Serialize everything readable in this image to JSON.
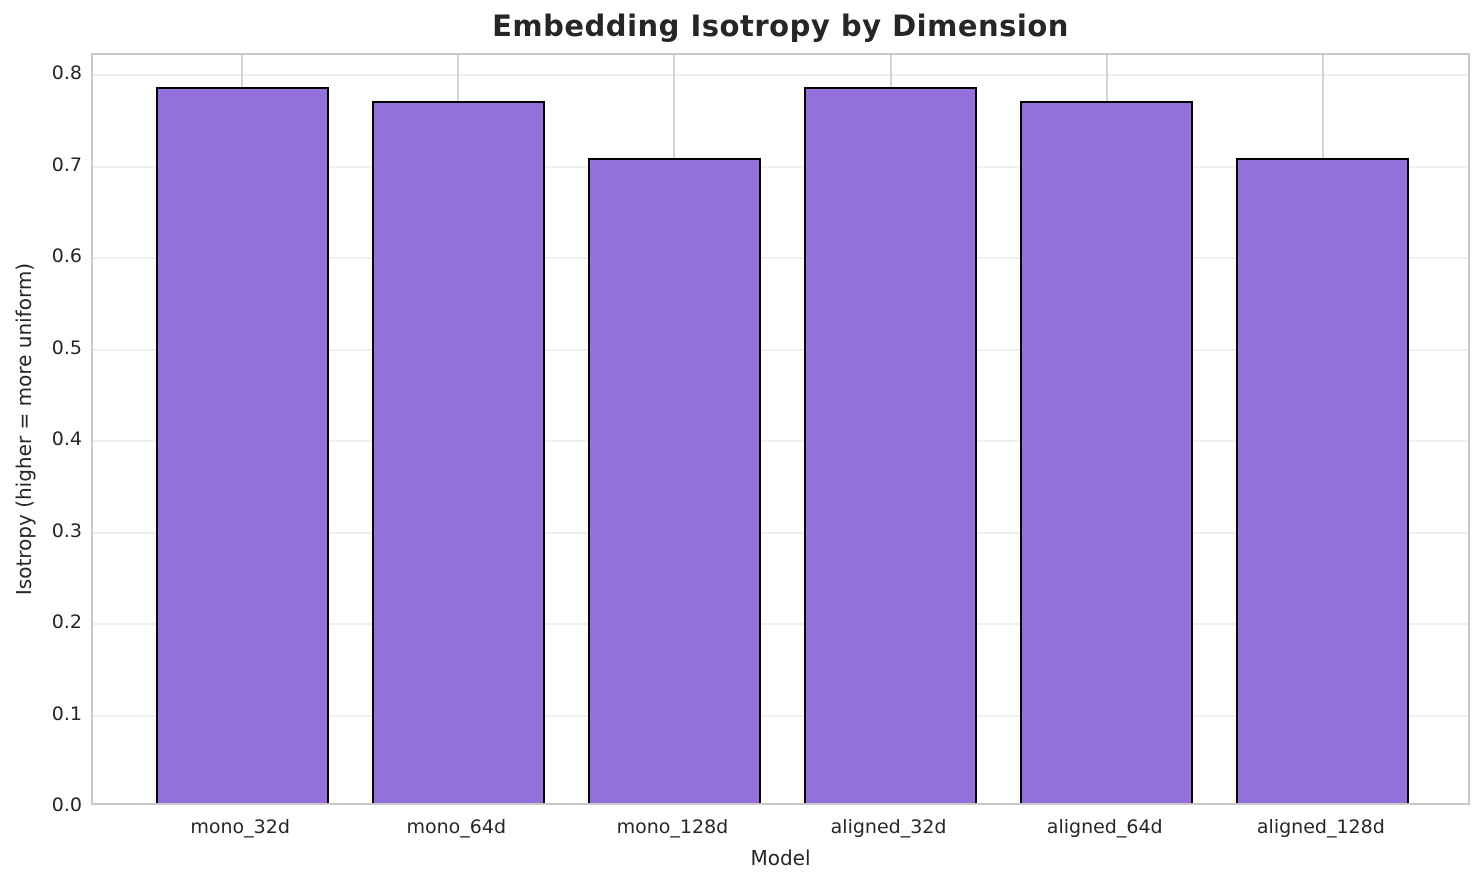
{
  "chart_data": {
    "type": "bar",
    "title": "Embedding Isotropy by Dimension",
    "xlabel": "Model",
    "ylabel": "Isotropy (higher = more uniform)",
    "categories": [
      "mono_32d",
      "mono_64d",
      "mono_128d",
      "aligned_32d",
      "aligned_64d",
      "aligned_128d"
    ],
    "values": [
      0.783,
      0.767,
      0.705,
      0.783,
      0.767,
      0.705
    ],
    "yticks": [
      0.0,
      0.1,
      0.2,
      0.3,
      0.4,
      0.5,
      0.6,
      0.7,
      0.8
    ],
    "ytick_labels": [
      "0.0",
      "0.1",
      "0.2",
      "0.3",
      "0.4",
      "0.5",
      "0.6",
      "0.7",
      "0.8"
    ],
    "ylim": [
      0,
      0.822
    ],
    "bar_width_fraction": 0.8,
    "xlim": [
      -0.69,
      5.69
    ],
    "grid": true,
    "legend": null,
    "colors": {
      "bar_fill": "#9370DB",
      "bar_edge": "#000000",
      "grid_horizontal": "#efefef",
      "grid_vertical": "#d4d4d4",
      "spine": "#c9c9c9",
      "text": "#262626",
      "background": "#ffffff"
    }
  }
}
